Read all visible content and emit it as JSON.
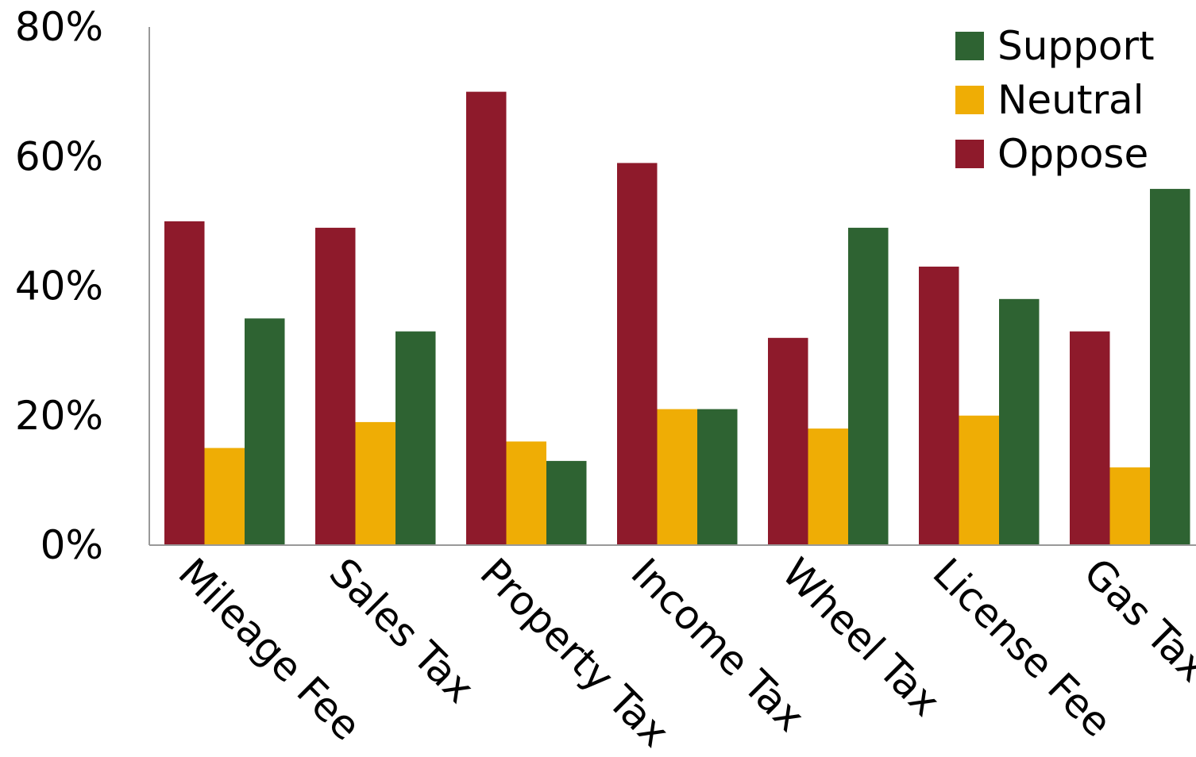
{
  "chart_data": {
    "type": "bar",
    "title": "",
    "xlabel": "",
    "ylabel": "",
    "ylim": [
      0,
      80
    ],
    "y_ticks": [
      "0%",
      "20%",
      "40%",
      "60%",
      "80%"
    ],
    "y_tick_values": [
      0,
      20,
      40,
      60,
      80
    ],
    "grid": false,
    "legend_position": "top-right",
    "categories": [
      "Mileage Fee",
      "Sales Tax",
      "Property Tax",
      "Income Tax",
      "Wheel Tax",
      "License Fee",
      "Gas Tax"
    ],
    "series": [
      {
        "name": "Oppose",
        "color": "#8e1a2b",
        "values": [
          50,
          49,
          70,
          59,
          32,
          43,
          33
        ]
      },
      {
        "name": "Neutral",
        "color": "#efad05",
        "values": [
          15,
          19,
          16,
          21,
          18,
          20,
          12
        ]
      },
      {
        "name": "Support",
        "color": "#2e6332",
        "values": [
          35,
          33,
          13,
          21,
          49,
          38,
          55
        ]
      }
    ],
    "legend_order": [
      "Support",
      "Neutral",
      "Oppose"
    ]
  }
}
